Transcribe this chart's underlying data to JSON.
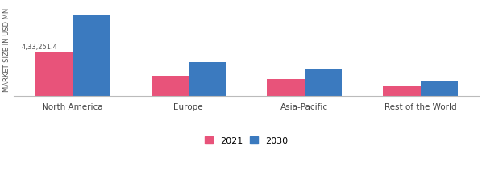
{
  "categories": [
    "North America",
    "Europe",
    "Asia-Pacific",
    "Rest of the World"
  ],
  "values_2021": [
    433251.4,
    195000,
    165000,
    90000
  ],
  "values_2030": [
    790000,
    330000,
    265000,
    140000
  ],
  "color_2021": "#e8537a",
  "color_2030": "#3b7abf",
  "annotation_text": "4,33,251.4",
  "ylabel": "MARKET SIZE IN USD MN",
  "legend_2021": "2021",
  "legend_2030": "2030",
  "bar_width": 0.32,
  "background_color": "#ffffff",
  "ylim_max": 900000
}
